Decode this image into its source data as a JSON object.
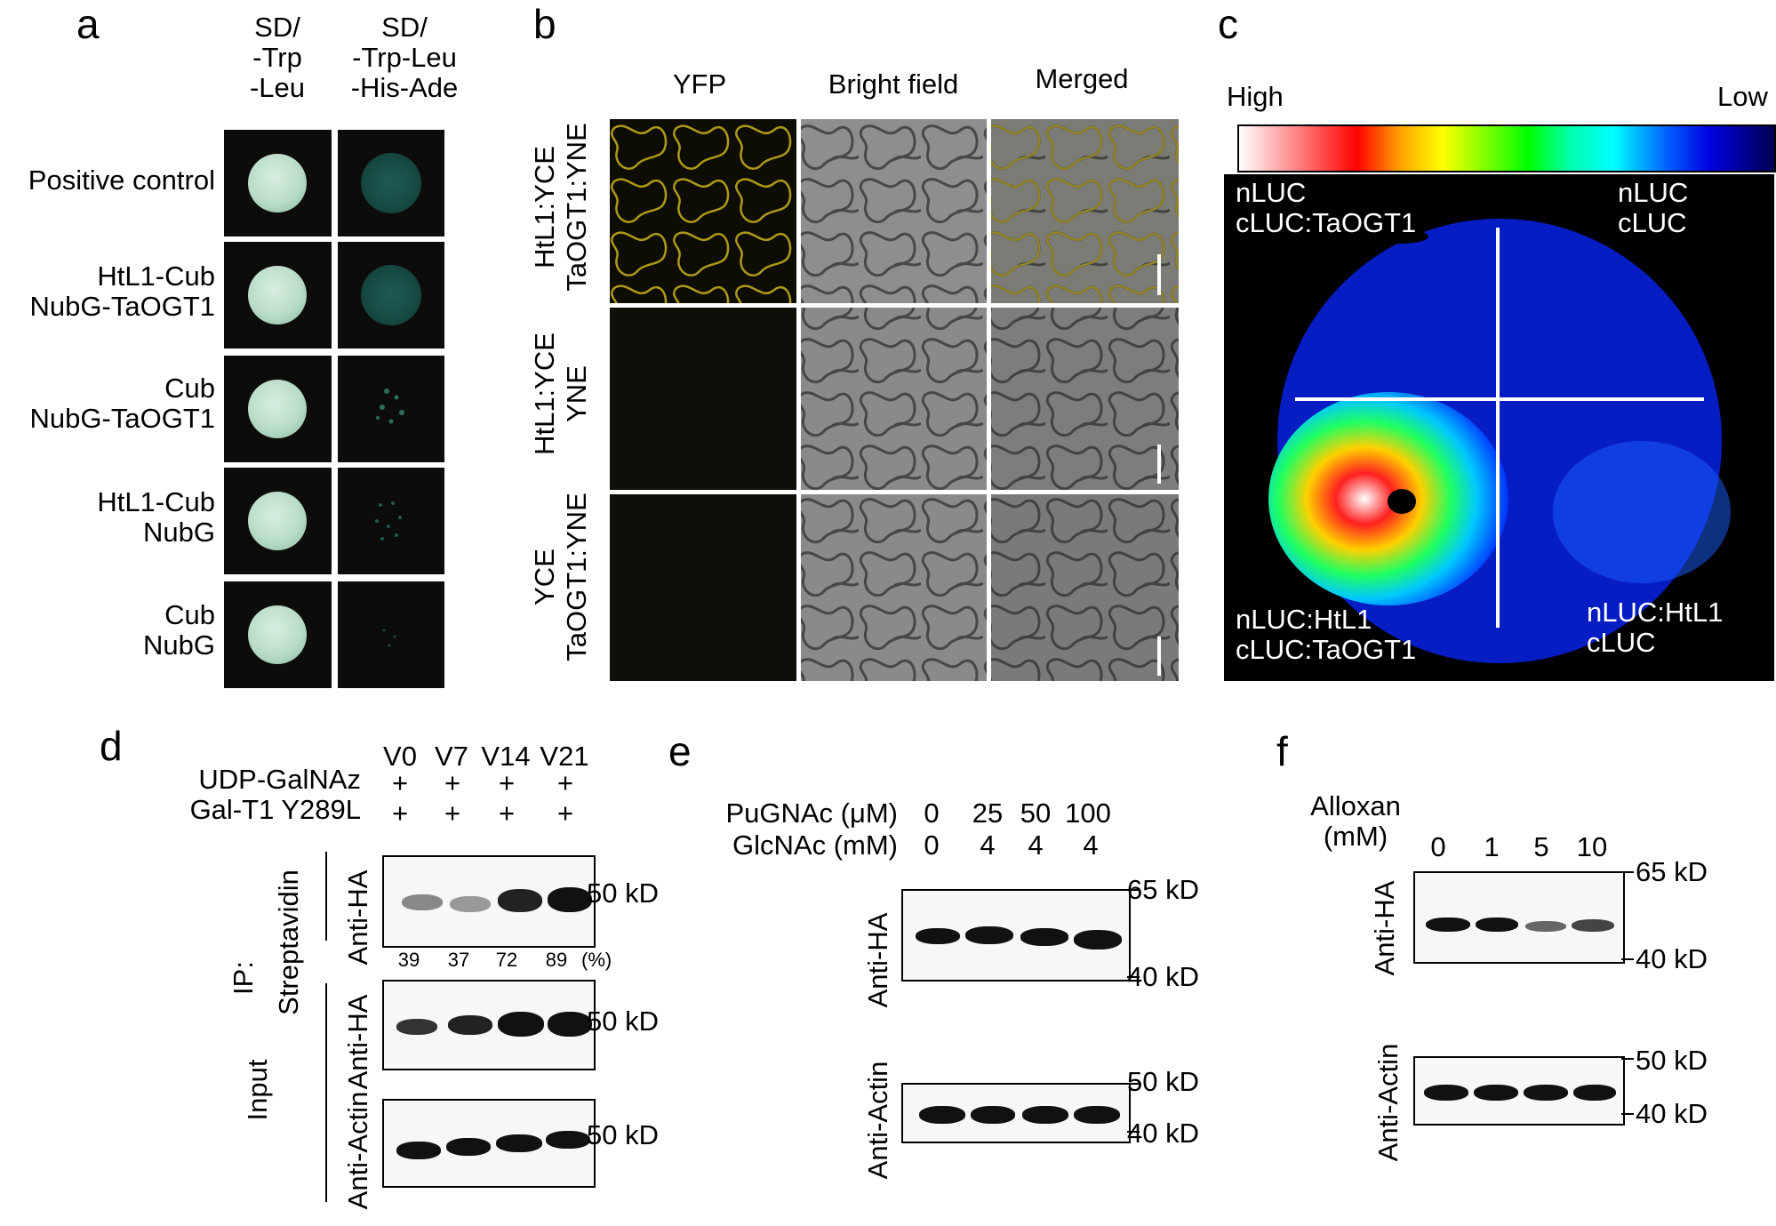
{
  "panel_labels": [
    "a",
    "b",
    "c",
    "d",
    "e",
    "f"
  ],
  "panel_a": {
    "column_headers": [
      {
        "lines": [
          "SD/",
          "-Trp",
          "-Leu"
        ]
      },
      {
        "lines": [
          "SD/",
          "-Trp-Leu",
          "-His-Ade"
        ]
      }
    ],
    "rows": [
      {
        "lines": [
          "Positive control"
        ]
      },
      {
        "lines": [
          "HtL1-Cub",
          "NubG-TaOGT1"
        ]
      },
      {
        "lines": [
          "Cub",
          "NubG-TaOGT1"
        ]
      },
      {
        "lines": [
          "HtL1-Cub",
          "NubG"
        ]
      },
      {
        "lines": [
          "Cub",
          "NubG"
        ]
      }
    ]
  },
  "panel_b": {
    "column_headers": [
      "YFP",
      "Bright field",
      "Merged"
    ],
    "rows": [
      {
        "lines": [
          "HtL1:YCE",
          "TaOGT1:YNE"
        ]
      },
      {
        "lines": [
          "HtL1:YCE",
          "YNE"
        ]
      },
      {
        "lines": [
          "YCE",
          "TaOGT1:YNE"
        ]
      }
    ]
  },
  "panel_c": {
    "scale_high": "High",
    "scale_low": "Low",
    "quadrants": [
      {
        "lines": [
          "nLUC",
          "cLUC:TaOGT1"
        ]
      },
      {
        "lines": [
          "nLUC",
          "cLUC"
        ]
      },
      {
        "lines": [
          "nLUC:HtL1",
          "cLUC:TaOGT1"
        ]
      },
      {
        "lines": [
          "nLUC:HtL1",
          "cLUC"
        ]
      }
    ]
  },
  "panel_d": {
    "lanes": [
      "V0",
      "V7",
      "V14",
      "V21"
    ],
    "row_labels": [
      "UDP-GalNAz",
      "Gal-T1 Y289L"
    ],
    "plus": "+",
    "ip_label": "IP:",
    "streptavidin": "Streptavidin",
    "input": "Input",
    "anti_ha": "Anti-HA",
    "anti_actin": "Anti-Actin",
    "percent_values": [
      "39",
      "37",
      "72",
      "89"
    ],
    "percent_unit": "(%)",
    "size_marker": "50 kD"
  },
  "panel_e": {
    "row1_label": "PuGNAc (μM)",
    "row1_values": [
      "0",
      "25",
      "50",
      "100"
    ],
    "row2_label": "GlcNAc (mM)",
    "row2_values": [
      "0",
      "4",
      "4",
      "4"
    ],
    "anti_ha": "Anti-HA",
    "anti_actin": "Anti-Actin",
    "ha_markers": [
      "65 kD",
      "40 kD"
    ],
    "actin_markers": [
      "50 kD",
      "40 kD"
    ]
  },
  "panel_f": {
    "title_lines": [
      "Alloxan",
      "(mM)"
    ],
    "values": [
      "0",
      "1",
      "5",
      "10"
    ],
    "anti_ha": "Anti-HA",
    "anti_actin": "Anti-Actin",
    "ha_markers": [
      "65 kD",
      "40 kD"
    ],
    "actin_markers": [
      "50 kD",
      "40 kD"
    ]
  },
  "colors": {
    "yfp": "#d8c21a",
    "luc_scale": [
      "#ffffff",
      "#ff0000",
      "#ffff00",
      "#00ff00",
      "#00ffff",
      "#0000ff",
      "#000033"
    ]
  }
}
